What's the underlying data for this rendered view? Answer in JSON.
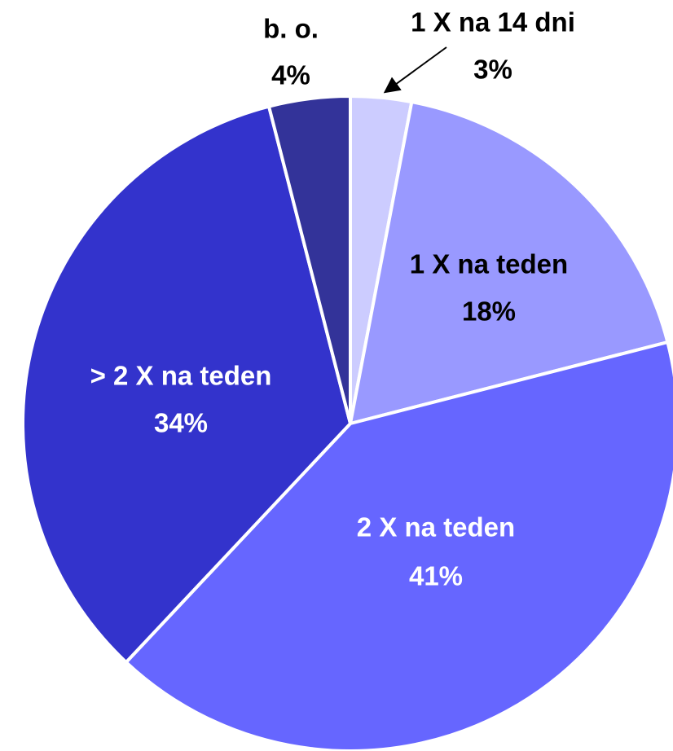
{
  "chart_data": {
    "type": "pie",
    "categories": [
      "1 X na 14 dni",
      "1 X na teden",
      "2 X na teden",
      "> 2 X na teden",
      "b. o."
    ],
    "values": [
      3,
      18,
      41,
      34,
      4
    ],
    "value_labels": [
      "3%",
      "18%",
      "41%",
      "34%",
      "4%"
    ],
    "colors": [
      "#ccccff",
      "#9999ff",
      "#6666ff",
      "#3333cc",
      "#333399"
    ]
  }
}
